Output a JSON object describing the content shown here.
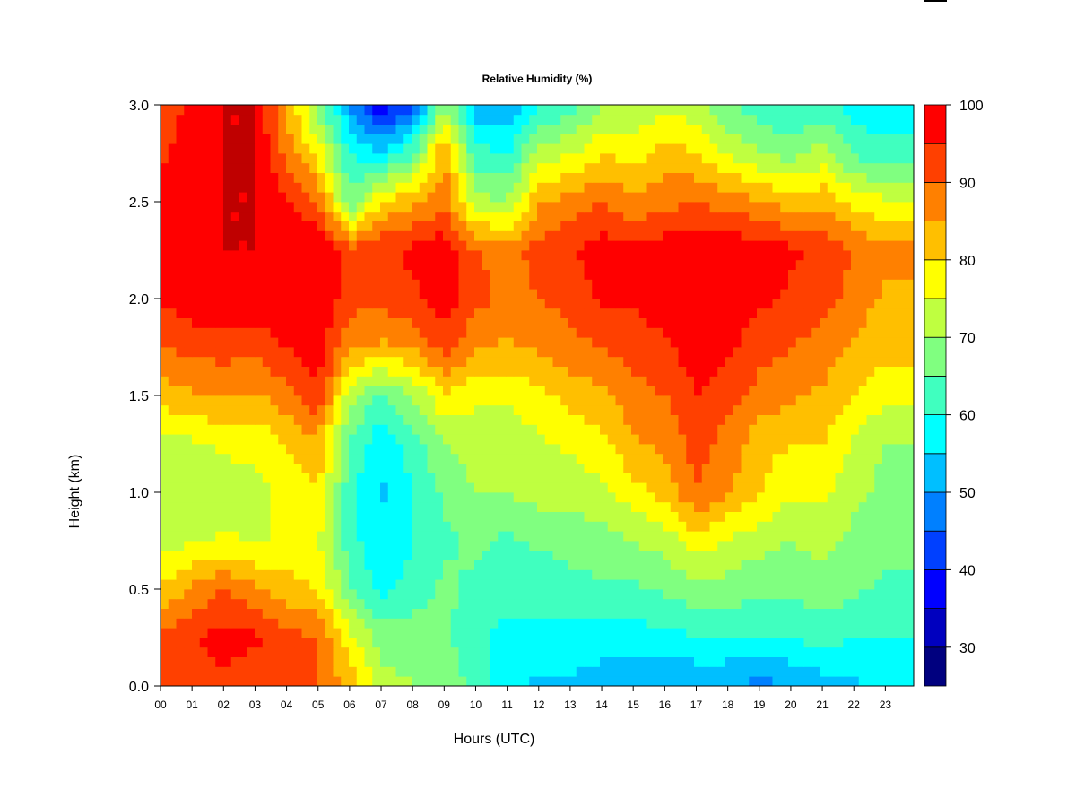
{
  "chart_data": {
    "type": "heatmap",
    "title": "Relative Humidity (%)",
    "xlabel": "Hours (UTC)",
    "ylabel": "Height (km)",
    "xlim": [
      0,
      23.9
    ],
    "ylim": [
      0,
      3
    ],
    "x_ticks": [
      "00",
      "01",
      "02",
      "03",
      "04",
      "05",
      "06",
      "07",
      "08",
      "09",
      "10",
      "11",
      "12",
      "13",
      "14",
      "15",
      "16",
      "17",
      "18",
      "19",
      "20",
      "21",
      "22",
      "23"
    ],
    "y_ticks": [
      "0.0",
      "0.5",
      "1.0",
      "1.5",
      "2.0",
      "2.5",
      "3.0"
    ],
    "colorbar": {
      "range": [
        25,
        100
      ],
      "ticks": [
        "30",
        "40",
        "50",
        "60",
        "70",
        "80",
        "90",
        "100"
      ],
      "levels": [
        25,
        30,
        35,
        40,
        45,
        50,
        55,
        60,
        65,
        70,
        75,
        80,
        85,
        90,
        95,
        100
      ],
      "colors": [
        "#00007f",
        "#0000bf",
        "#0000ff",
        "#0040ff",
        "#0080ff",
        "#00bfff",
        "#00ffff",
        "#40ffbf",
        "#80ff80",
        "#bfff40",
        "#ffff00",
        "#ffbf00",
        "#ff8000",
        "#ff4000",
        "#ff0000",
        "#bf0000"
      ]
    },
    "height_levels_km": [
      0.0,
      0.25,
      0.5,
      0.75,
      1.0,
      1.25,
      1.5,
      1.75,
      2.0,
      2.25,
      2.5,
      2.75,
      3.0
    ],
    "hours": [
      0,
      1,
      2,
      3,
      4,
      5,
      6,
      7,
      8,
      9,
      10,
      11,
      12,
      13,
      14,
      15,
      16,
      17,
      18,
      19,
      20,
      21,
      22,
      23
    ],
    "rh_percent": [
      [
        90,
        92,
        94,
        92,
        90,
        90,
        84,
        72,
        70,
        70,
        62,
        56,
        54,
        54,
        52,
        50,
        50,
        50,
        50,
        48,
        50,
        52,
        54,
        56
      ],
      [
        92,
        95,
        97,
        96,
        92,
        90,
        76,
        68,
        68,
        66,
        62,
        58,
        58,
        58,
        58,
        58,
        58,
        60,
        60,
        60,
        60,
        62,
        60,
        60
      ],
      [
        80,
        86,
        90,
        86,
        82,
        80,
        66,
        58,
        62,
        66,
        64,
        62,
        62,
        64,
        64,
        64,
        66,
        68,
        68,
        66,
        66,
        68,
        66,
        64
      ],
      [
        74,
        74,
        76,
        74,
        76,
        76,
        62,
        56,
        60,
        64,
        66,
        64,
        66,
        66,
        68,
        70,
        72,
        78,
        74,
        72,
        70,
        72,
        68,
        66
      ],
      [
        72,
        72,
        72,
        74,
        76,
        80,
        62,
        54,
        60,
        66,
        70,
        70,
        72,
        72,
        74,
        78,
        82,
        90,
        86,
        80,
        76,
        76,
        72,
        68
      ],
      [
        74,
        74,
        76,
        76,
        80,
        84,
        64,
        56,
        62,
        70,
        72,
        72,
        74,
        76,
        78,
        84,
        86,
        92,
        88,
        82,
        80,
        80,
        74,
        70
      ],
      [
        82,
        84,
        86,
        84,
        88,
        94,
        72,
        64,
        70,
        80,
        76,
        76,
        78,
        82,
        84,
        88,
        90,
        95,
        92,
        88,
        86,
        84,
        80,
        76
      ],
      [
        90,
        92,
        92,
        92,
        95,
        98,
        86,
        84,
        86,
        92,
        86,
        84,
        86,
        88,
        90,
        92,
        94,
        98,
        96,
        92,
        90,
        88,
        84,
        82
      ],
      [
        96,
        98,
        98,
        98,
        99,
        100,
        92,
        92,
        94,
        98,
        92,
        88,
        90,
        92,
        96,
        96,
        98,
        99,
        98,
        96,
        94,
        92,
        88,
        84
      ],
      [
        99,
        100,
        100,
        100,
        100,
        100,
        92,
        94,
        96,
        99,
        90,
        88,
        92,
        94,
        98,
        96,
        98,
        99,
        99,
        98,
        96,
        94,
        90,
        86
      ],
      [
        96,
        98,
        100,
        100,
        96,
        90,
        66,
        80,
        84,
        88,
        72,
        70,
        84,
        88,
        90,
        86,
        88,
        90,
        88,
        86,
        82,
        84,
        78,
        76
      ],
      [
        94,
        98,
        100,
        100,
        88,
        78,
        60,
        56,
        64,
        86,
        62,
        60,
        72,
        74,
        80,
        78,
        82,
        80,
        74,
        70,
        68,
        72,
        64,
        62
      ],
      [
        92,
        96,
        100,
        100,
        84,
        68,
        50,
        36,
        44,
        70,
        52,
        50,
        60,
        62,
        70,
        70,
        74,
        72,
        66,
        62,
        60,
        62,
        58,
        56
      ]
    ]
  }
}
